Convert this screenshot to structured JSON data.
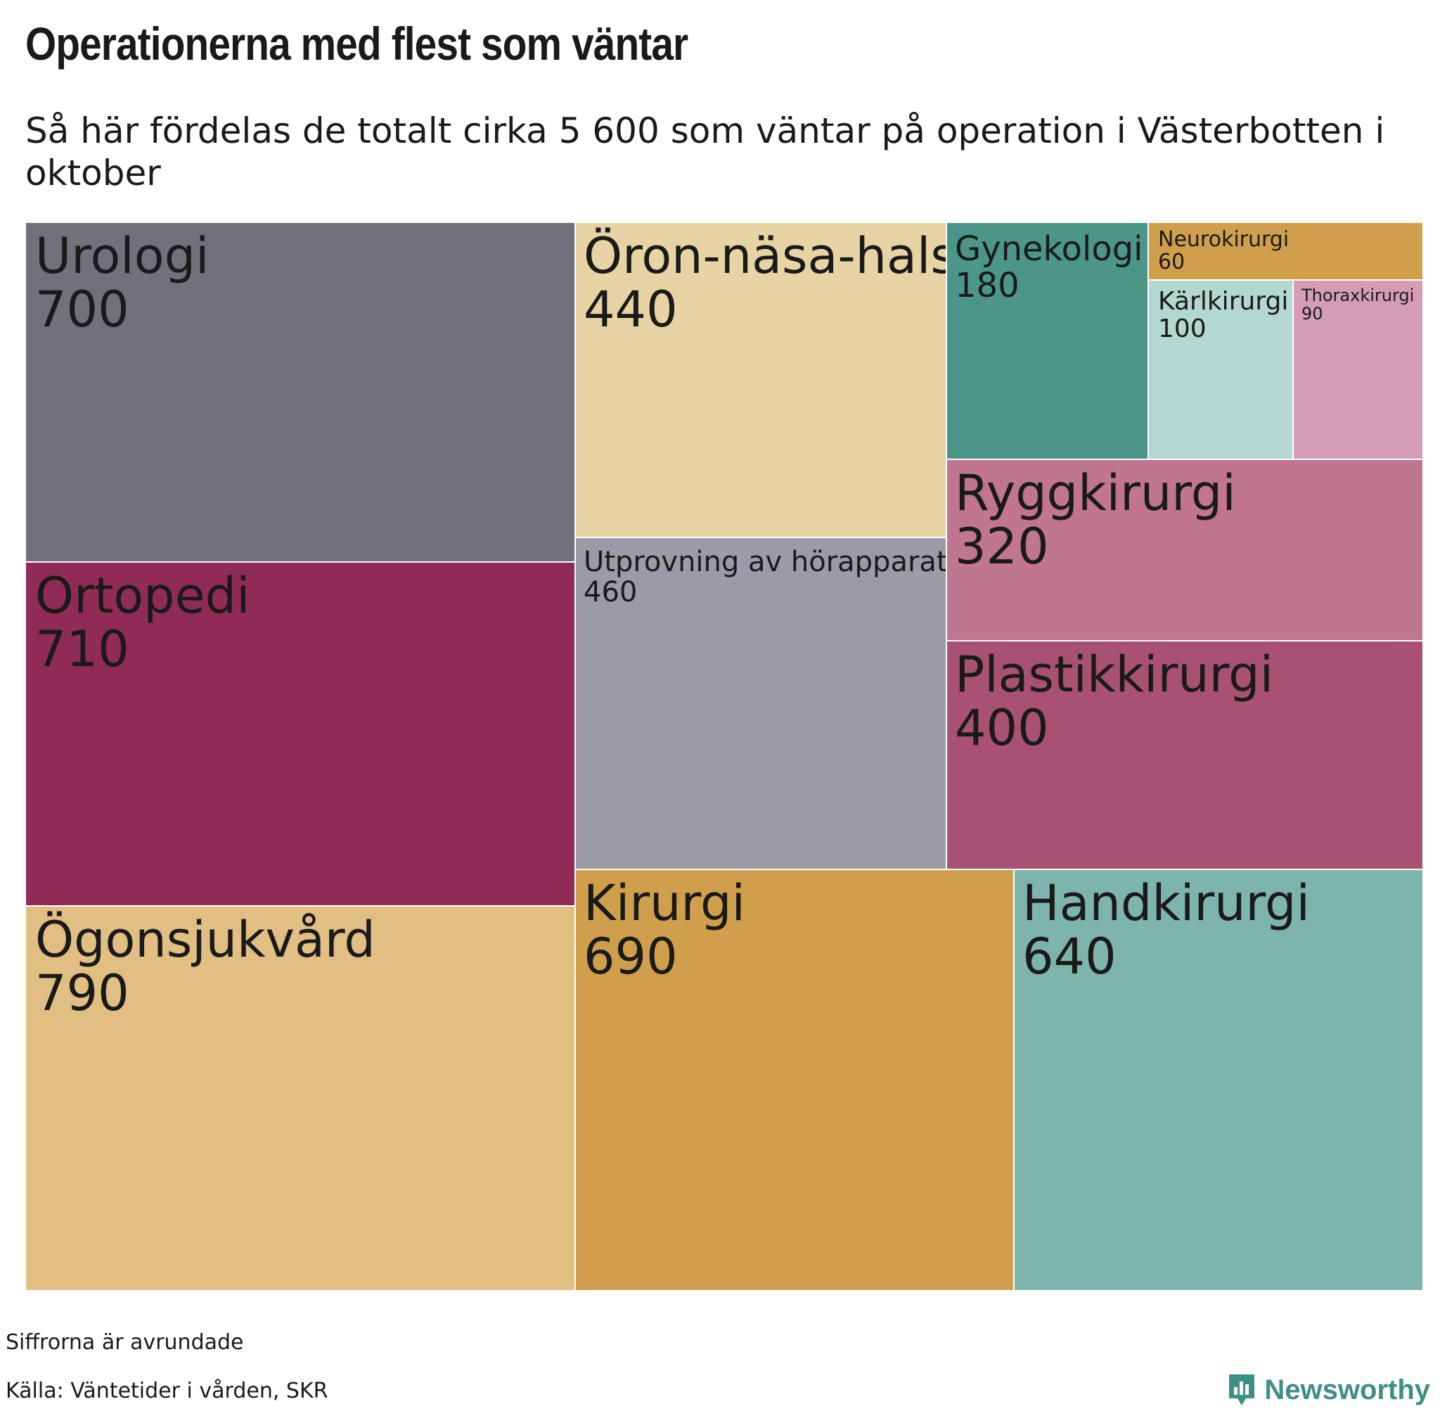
{
  "title": "Operationerna med flest som väntar",
  "subtitle": "Så här fördelas de totalt cirka 5 600 som väntar på operation i Västerbotten i oktober",
  "chart_data": {
    "type": "treemap",
    "unit": "antal som väntar",
    "items": [
      {
        "name": "Urologi",
        "value": 700,
        "color": "#72707b"
      },
      {
        "name": "Ortopedi",
        "value": 710,
        "color": "#902b56"
      },
      {
        "name": "Ögonsjukvård",
        "value": 790,
        "color": "#e1bf83"
      },
      {
        "name": "Öron-näsa-hals",
        "value": 440,
        "color": "#e8d3a4"
      },
      {
        "name": "Utprovning av hörapparat",
        "value": 460,
        "color": "#9b9aa7"
      },
      {
        "name": "Gynekologi",
        "value": 180,
        "color": "#4b9689"
      },
      {
        "name": "Neurokirurgi",
        "value": 60,
        "color": "#d09f4b"
      },
      {
        "name": "Kärlkirurgi",
        "value": 100,
        "color": "#b2d8cf"
      },
      {
        "name": "Thoraxkirurgi",
        "value": 90,
        "color": "#d49db5"
      },
      {
        "name": "Ryggkirurgi",
        "value": 320,
        "color": "#c07591"
      },
      {
        "name": "Plastikkirurgi",
        "value": 400,
        "color": "#a85173"
      },
      {
        "name": "Kirurgi",
        "value": 690,
        "color": "#d09f4b"
      },
      {
        "name": "Handkirurgi",
        "value": 640,
        "color": "#7db4ac"
      }
    ]
  },
  "footer": {
    "note": "Siffrorna är avrundade",
    "source": "Källa: Väntetider i vården, SKR",
    "brand": "Newsworthy",
    "brand_color": "#3f8f86"
  }
}
